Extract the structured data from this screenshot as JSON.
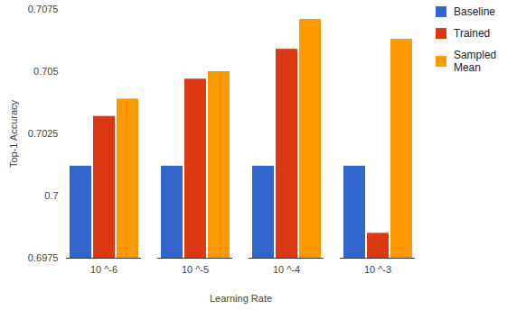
{
  "chart_data": {
    "type": "bar",
    "x_label": "Learning Rate",
    "y_label": "Top-1 Accuracy",
    "categories": [
      "10 ^-6",
      "10 ^-5",
      "10 ^-4",
      "10 ^-3"
    ],
    "series": [
      {
        "name": "Baseline",
        "color": "#3366cc",
        "values": [
          0.7012,
          0.7012,
          0.7012,
          0.7012
        ]
      },
      {
        "name": "Trained",
        "color": "#dc3912",
        "values": [
          0.7032,
          0.7047,
          0.7059,
          0.6985
        ]
      },
      {
        "name": "Sampled Mean",
        "color": "#ff9900",
        "values": [
          0.7039,
          0.705,
          0.7071,
          0.7063
        ]
      }
    ],
    "ylim": [
      0.6975,
      0.7075
    ],
    "yticks": [
      0.6975,
      0.7,
      0.7025,
      0.705,
      0.7075
    ],
    "grid": false,
    "legend": "top-right"
  }
}
